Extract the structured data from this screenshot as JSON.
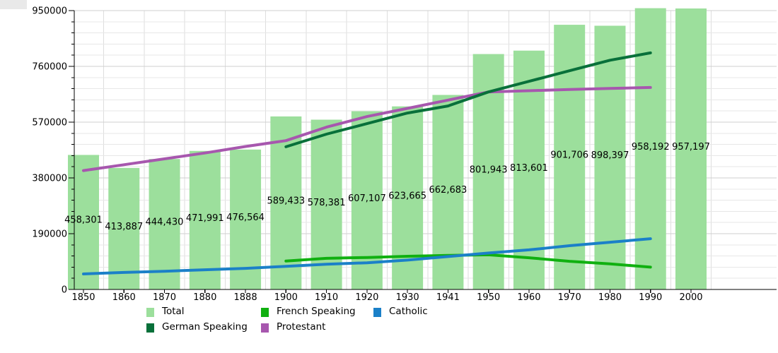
{
  "window": {
    "background": "#ffffff"
  },
  "chart_data": {
    "type": "bar+line",
    "title": "",
    "xlabel": "",
    "ylabel": "",
    "categories": [
      "1850",
      "1860",
      "1870",
      "1880",
      "1888",
      "1900",
      "1910",
      "1920",
      "1930",
      "1941",
      "1950",
      "1960",
      "1970",
      "1980",
      "1990",
      "2000"
    ],
    "ylim": [
      0,
      950000
    ],
    "yticks": [
      0,
      190000,
      380000,
      570000,
      760000,
      950000
    ],
    "ytick_labels": [
      "0",
      "190000",
      "380000",
      "570000",
      "760000",
      "950000"
    ],
    "minor_step": 38000,
    "grid": true,
    "legend_position": "bottom",
    "bar_series": {
      "name": "Total",
      "color": "#9cdf9c",
      "values": [
        458301,
        413887,
        444430,
        471991,
        476564,
        589433,
        578381,
        607107,
        623665,
        662683,
        801943,
        813601,
        901706,
        898397,
        958192,
        957197
      ],
      "labels": [
        "458,301",
        "413,887",
        "444,430",
        "471,991",
        "476,564",
        "589,433",
        "578,381",
        "607,107",
        "623,665",
        "662,683",
        "801,943",
        "813,601",
        "901,706",
        "898,397",
        "958,192",
        "957,197"
      ]
    },
    "line_series": [
      {
        "name": "Protestant",
        "color": "#a757ae",
        "values": [
          405000,
          425000,
          445000,
          465000,
          487000,
          507000,
          553000,
          589000,
          617000,
          645000,
          673000,
          677000,
          681000,
          685000,
          688000,
          null
        ]
      },
      {
        "name": "German Speaking",
        "color": "#08703a",
        "values": [
          null,
          null,
          null,
          null,
          null,
          486000,
          529000,
          565000,
          601000,
          625000,
          673000,
          709000,
          745000,
          781000,
          806000,
          null
        ]
      },
      {
        "name": "French Speaking",
        "color": "#10b010",
        "values": [
          null,
          null,
          null,
          null,
          null,
          97000,
          106000,
          109000,
          113000,
          116000,
          118000,
          108000,
          96000,
          87000,
          76000,
          null
        ]
      },
      {
        "name": "Catholic",
        "color": "#1b80c8",
        "values": [
          53000,
          58000,
          62000,
          67000,
          72000,
          79000,
          86000,
          91000,
          100000,
          112000,
          124000,
          135000,
          149000,
          161000,
          173000,
          null
        ]
      }
    ]
  },
  "legend": {
    "items": [
      {
        "id": "total",
        "label": "Total",
        "color": "#9cdf9c"
      },
      {
        "id": "german-speaking",
        "label": "German Speaking",
        "color": "#08703a"
      },
      {
        "id": "french-speaking",
        "label": "French Speaking",
        "color": "#10b010"
      },
      {
        "id": "protestant",
        "label": "Protestant",
        "color": "#a757ae"
      },
      {
        "id": "catholic",
        "label": "Catholic",
        "color": "#1b80c8"
      }
    ]
  },
  "colors": {
    "axis": "#000000",
    "grid_major": "#cfcfcf",
    "grid_minor": "#e7e7e7",
    "grid_vertical": "#dedede",
    "bar_label_text": "#000000",
    "tick_label_text": "#000000"
  }
}
